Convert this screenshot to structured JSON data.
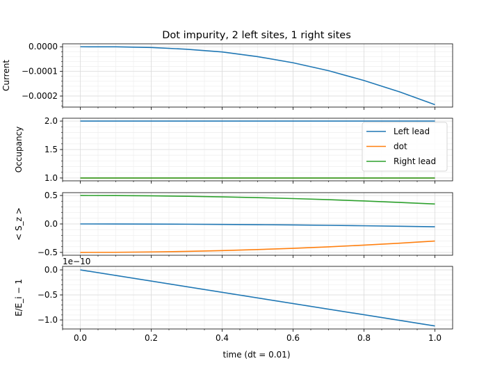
{
  "chart_data": {
    "type": "line",
    "title": "Dot impurity, 2 left sites, 1 right sites",
    "xlabel": "time (dt = 0.01)",
    "x_ticks": [
      "0.0",
      "0.2",
      "0.4",
      "0.6",
      "0.8",
      "1.0"
    ],
    "xlim": [
      -0.05,
      1.05
    ],
    "grid": true,
    "colors": {
      "left_lead": "#1f77b4",
      "dot": "#ff7f0e",
      "right_lead": "#2ca02c"
    },
    "panels": [
      {
        "ylabel": "Current",
        "ylim": [
          -0.000245,
          1.2e-05
        ],
        "y_ticks": [
          {
            "value": 0.0,
            "label": "0.0000"
          },
          {
            "value": -0.0001,
            "label": "−0.0001"
          },
          {
            "value": -0.0002,
            "label": "−0.0002"
          }
        ],
        "series": [
          {
            "key": "left_lead",
            "x": [
              0.0,
              0.1,
              0.2,
              0.3,
              0.4,
              0.5,
              0.6,
              0.7,
              0.8,
              0.9,
              1.0
            ],
            "y": [
              0.0,
              -2e-07,
              -3e-06,
              -1e-05,
              -2.1e-05,
              -4e-05,
              -6.5e-05,
              -9.7e-05,
              -0.000137,
              -0.000183,
              -0.000235
            ]
          }
        ]
      },
      {
        "ylabel": "Occupancy",
        "ylim": [
          0.95,
          2.05
        ],
        "y_ticks": [
          {
            "value": 2.0,
            "label": "2.0"
          },
          {
            "value": 1.5,
            "label": "1.5"
          },
          {
            "value": 1.0,
            "label": "1.0"
          }
        ],
        "legend": {
          "placement": "upper right",
          "entries": [
            {
              "key": "left_lead",
              "label": "Left lead"
            },
            {
              "key": "dot",
              "label": "dot"
            },
            {
              "key": "right_lead",
              "label": "Right lead"
            }
          ]
        },
        "series": [
          {
            "key": "left_lead",
            "x": [
              0.0,
              1.0
            ],
            "y": [
              2.0,
              2.0
            ]
          },
          {
            "key": "dot",
            "x": [
              0.0,
              1.0
            ],
            "y": [
              1.0,
              1.0
            ]
          },
          {
            "key": "right_lead",
            "x": [
              0.0,
              1.0
            ],
            "y": [
              1.0,
              1.0
            ]
          }
        ]
      },
      {
        "ylabel": "< S_z >",
        "ylim": [
          -0.55,
          0.55
        ],
        "y_ticks": [
          {
            "value": 0.5,
            "label": "0.5"
          },
          {
            "value": 0.0,
            "label": "0.0"
          },
          {
            "value": -0.5,
            "label": "−0.5"
          }
        ],
        "series": [
          {
            "key": "right_lead",
            "x": [
              0.0,
              0.1,
              0.2,
              0.3,
              0.4,
              0.5,
              0.6,
              0.7,
              0.8,
              0.9,
              1.0
            ],
            "y": [
              0.5,
              0.4985,
              0.494,
              0.4865,
              0.476,
              0.4625,
              0.446,
              0.4265,
              0.404,
              0.3785,
              0.35
            ]
          },
          {
            "key": "left_lead",
            "x": [
              0.0,
              0.1,
              0.2,
              0.3,
              0.4,
              0.5,
              0.6,
              0.7,
              0.8,
              0.9,
              1.0
            ],
            "y": [
              0.0,
              -0.0005,
              -0.002,
              -0.0045,
              -0.008,
              -0.0125,
              -0.018,
              -0.0245,
              -0.032,
              -0.0405,
              -0.05
            ]
          },
          {
            "key": "dot",
            "x": [
              0.0,
              0.1,
              0.2,
              0.3,
              0.4,
              0.5,
              0.6,
              0.7,
              0.8,
              0.9,
              1.0
            ],
            "y": [
              -0.5,
              -0.498,
              -0.492,
              -0.482,
              -0.468,
              -0.45,
              -0.428,
              -0.402,
              -0.372,
              -0.338,
              -0.3
            ]
          }
        ]
      },
      {
        "ylabel": "E/E_i − 1",
        "offset_text": "1e−10",
        "ylim": [
          -1.18,
          0.07
        ],
        "y_ticks": [
          {
            "value": 0.0,
            "label": "0.0"
          },
          {
            "value": -0.5,
            "label": "−0.5"
          },
          {
            "value": -1.0,
            "label": "−1.0"
          }
        ],
        "series": [
          {
            "key": "left_lead",
            "x": [
              0.0,
              1.0
            ],
            "y": [
              0.0,
              -1.12
            ]
          }
        ]
      }
    ]
  }
}
